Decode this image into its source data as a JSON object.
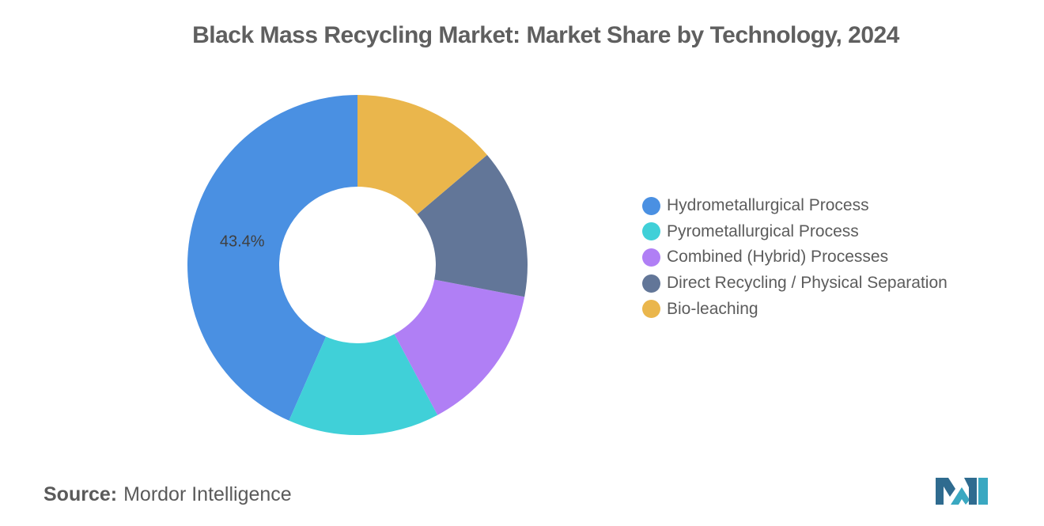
{
  "chart_data": {
    "type": "pie",
    "variant": "donut",
    "title": "Black Mass Recycling Market: Market Share by Technology, 2024",
    "categories": [
      "Hydrometallurgical Process",
      "Pyrometallurgical Process",
      "Combined (Hybrid) Processes",
      "Direct Recycling / Physical Separation",
      "Bio-leaching"
    ],
    "values": [
      43.4,
      14.4,
      14.2,
      14.2,
      13.8
    ],
    "data_labels": [
      "43.4%",
      "",
      "",
      "",
      ""
    ],
    "colors": [
      "#4a90e2",
      "#40d0d8",
      "#b07ff5",
      "#627698",
      "#eab64c"
    ],
    "legend_position": "right"
  },
  "source": {
    "label": "Source:",
    "value": "Mordor Intelligence"
  },
  "logo_icon": "mordor-intelligence-logo-icon"
}
